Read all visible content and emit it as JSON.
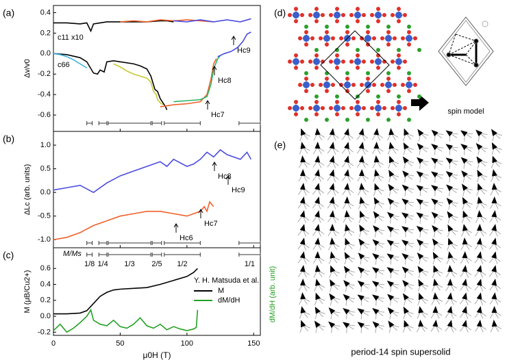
{
  "chart_data": [
    {
      "type": "line",
      "panel": "(a)",
      "y_label": "Δv/v0",
      "xlim": [
        0,
        155
      ],
      "ylim": [
        -0.76,
        0.47
      ],
      "yticks": [
        -0.6,
        -0.4,
        -0.2,
        {
          "value": 0,
          "label": "0.0"
        },
        0.2,
        0.4
      ],
      "annotations": [
        "c11 x10",
        "c66",
        "Hc7",
        "Hc8",
        "Hc9"
      ],
      "series": [
        {
          "color": "#000000",
          "x": [
            0,
            10,
            20,
            25,
            28,
            30,
            35,
            40,
            50,
            60,
            70,
            80,
            85,
            90
          ],
          "values": [
            0.3,
            0.3,
            0.29,
            0.3,
            0.22,
            0.29,
            0.3,
            0.31,
            0.31,
            0.31,
            0.31,
            0.32,
            0.32,
            0.31
          ]
        },
        {
          "color": "#f0602a",
          "x": [
            50,
            60,
            70,
            80,
            90,
            100,
            110,
            120
          ],
          "values": [
            0.31,
            0.32,
            0.31,
            0.33,
            0.32,
            0.33,
            0.32,
            0.31
          ]
        },
        {
          "color": "#4a4ae0",
          "x": [
            90,
            100,
            110,
            120,
            130,
            140,
            148
          ],
          "values": [
            0.32,
            0.31,
            0.33,
            0.31,
            0.33,
            0.31,
            0.34
          ]
        },
        {
          "color": "#000000",
          "x": [
            0,
            10,
            20,
            25,
            30,
            33,
            35,
            38,
            40,
            45,
            50,
            60,
            65,
            70,
            73,
            76,
            78,
            80,
            82,
            84,
            85
          ],
          "values": [
            0,
            -0.01,
            -0.04,
            -0.08,
            -0.19,
            -0.2,
            -0.16,
            -0.18,
            -0.08,
            -0.07,
            -0.08,
            -0.1,
            -0.12,
            -0.15,
            -0.22,
            -0.35,
            -0.37,
            -0.44,
            -0.48,
            -0.52,
            -0.55
          ]
        },
        {
          "color": "#3cb4e0",
          "x": [
            0,
            5,
            10,
            15,
            20,
            25
          ],
          "values": [
            0,
            -0.01,
            -0.03,
            -0.06,
            -0.1,
            -0.14
          ]
        },
        {
          "color": "#c8c832",
          "x": [
            45,
            50,
            55,
            60,
            65,
            70,
            73,
            75,
            77,
            78,
            80,
            82
          ],
          "values": [
            -0.1,
            -0.13,
            -0.17,
            -0.2,
            -0.22,
            -0.24,
            -0.28,
            -0.37,
            -0.4,
            -0.45,
            -0.48,
            -0.5
          ]
        },
        {
          "color": "#f0602a",
          "x": [
            80,
            90,
            100,
            110,
            115,
            118,
            120,
            122
          ],
          "values": [
            -0.52,
            -0.5,
            -0.49,
            -0.47,
            -0.4,
            -0.25,
            -0.1,
            -0.05
          ]
        },
        {
          "color": "#28b464",
          "x": [
            90,
            100,
            110,
            115,
            118,
            120,
            123,
            125
          ],
          "values": [
            -0.47,
            -0.46,
            -0.45,
            -0.42,
            -0.3,
            -0.15,
            -0.05,
            -0.02
          ]
        },
        {
          "color": "#4a4ae0",
          "x": [
            123,
            128,
            133,
            138,
            142,
            145,
            148
          ],
          "values": [
            -0.03,
            0,
            0.02,
            0.06,
            0.12,
            0.19,
            0.21
          ]
        }
      ]
    },
    {
      "type": "line",
      "panel": "(b)",
      "y_label": "ΔLc (arb. units)",
      "xlim": [
        0,
        155
      ],
      "ylim": [
        -1.17,
        1.29
      ],
      "yticks": [
        {
          "value": -1,
          "label": "-1.0"
        },
        -0.5,
        {
          "value": 0,
          "label": "0.0"
        },
        0.5,
        {
          "value": 1,
          "label": "1.0"
        }
      ],
      "annotations": [
        "Hc8",
        "Hc9",
        "Hc7",
        "Hc6"
      ],
      "series": [
        {
          "color": "#4a4ae0",
          "x": [
            0,
            10,
            20,
            30,
            40,
            50,
            60,
            70,
            80,
            85,
            90,
            100,
            105,
            110,
            115,
            120,
            125,
            130,
            135,
            140,
            145,
            148
          ],
          "values": [
            0.05,
            0.1,
            0.15,
            0,
            0.2,
            0.35,
            0.45,
            0.55,
            0.65,
            0.55,
            0.7,
            0.55,
            0.6,
            0.7,
            0.85,
            0.75,
            0.9,
            0.8,
            0.75,
            0.7,
            0.85,
            0.7
          ]
        },
        {
          "color": "#f0602a",
          "x": [
            0,
            10,
            20,
            30,
            40,
            50,
            60,
            70,
            80,
            90,
            100,
            105,
            110,
            113,
            115,
            117,
            120
          ],
          "values": [
            -1,
            -0.95,
            -0.85,
            -0.7,
            -0.6,
            -0.5,
            -0.45,
            -0.4,
            -0.4,
            -0.45,
            -0.5,
            -0.45,
            -0.4,
            -0.3,
            -0.4,
            -0.2,
            -0.3
          ]
        }
      ]
    },
    {
      "type": "line",
      "panel": "(c)",
      "y_label": "M (μB/Cu2+)",
      "y2_label": "dM/dH (arb. unit)",
      "x_label": "μ0H (T)",
      "xlim": [
        0,
        155
      ],
      "ylim": [
        -0.24,
        0.86
      ],
      "xticks": [
        0,
        50,
        100,
        150
      ],
      "yticks": [
        -0.2,
        {
          "value": 0,
          "label": "0.0"
        },
        0.2,
        0.4,
        0.6
      ],
      "legend_title": "Y. H. Matsuda et al.",
      "plateau_axis_label": "M/Ms",
      "plateaus": [
        {
          "label": "1/8",
          "range": [
            25,
            29
          ]
        },
        {
          "label": "1/4",
          "range": [
            34,
            40
          ]
        },
        {
          "label": "1/3",
          "range": [
            41,
            73
          ]
        },
        {
          "label": "2/5",
          "range": [
            74,
            81
          ]
        },
        {
          "label": "1/2",
          "range": [
            83,
            110
          ]
        },
        {
          "label": "1/1",
          "range": [
            139,
            155
          ]
        }
      ],
      "series": [
        {
          "name": "M",
          "color": "#000000",
          "x": [
            0,
            10,
            20,
            25,
            30,
            35,
            40,
            45,
            50,
            60,
            70,
            80,
            90,
            100,
            105,
            108
          ],
          "values": [
            0.03,
            0.03,
            0.04,
            0.07,
            0.16,
            0.25,
            0.3,
            0.33,
            0.34,
            0.35,
            0.36,
            0.4,
            0.45,
            0.5,
            0.55,
            0.6
          ]
        },
        {
          "name": "dM/dH",
          "color": "#22a022",
          "x": [
            0,
            5,
            10,
            15,
            20,
            25,
            28,
            30,
            35,
            40,
            45,
            50,
            55,
            60,
            65,
            70,
            75,
            80,
            85,
            90,
            95,
            100,
            105,
            107,
            108
          ],
          "values": [
            -0.18,
            -0.1,
            -0.2,
            -0.15,
            -0.08,
            0,
            0.08,
            -0.05,
            -0.1,
            -0.12,
            -0.05,
            -0.13,
            -0.15,
            -0.1,
            -0.02,
            -0.12,
            -0.15,
            -0.1,
            -0.17,
            -0.13,
            -0.16,
            -0.18,
            -0.16,
            -0.14,
            0.08
          ]
        }
      ]
    }
  ],
  "diagrams": {
    "d": {
      "label": "(d)",
      "caption": "spin model"
    },
    "e": {
      "label": "(e)",
      "caption": "period-14 spin supersolid"
    }
  }
}
